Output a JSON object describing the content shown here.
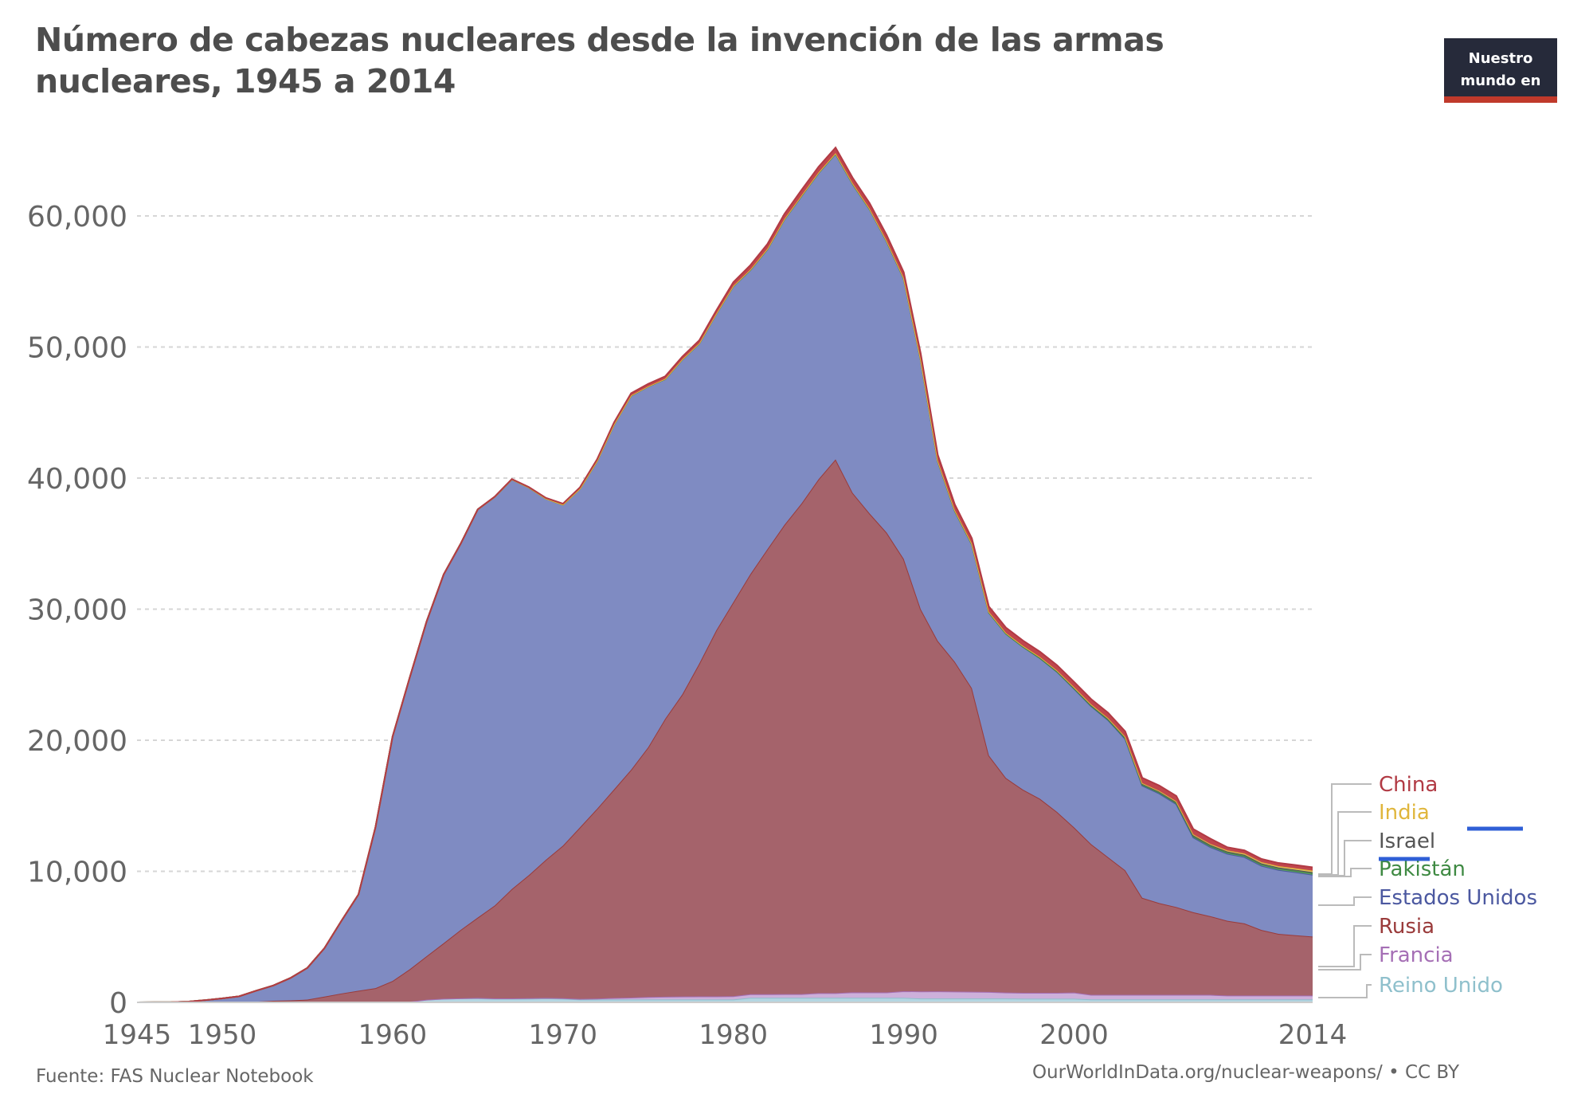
{
  "title": "Número de cabezas nucleares desde la invención de las armas nucleares, 1945 a 2014",
  "logo": {
    "line1": "Nuestro",
    "line2": "mundo en"
  },
  "source": "Fuente: FAS Nuclear Notebook",
  "license": "OurWorldInData.org/nuclear-weapons/ • CC BY",
  "chart_data": {
    "type": "area",
    "stacked": true,
    "grid": true,
    "legend_placement": "right",
    "ylim": [
      0,
      65000
    ],
    "xlim": [
      1945,
      2014
    ],
    "yticks": [
      0,
      10000,
      20000,
      30000,
      40000,
      50000,
      60000
    ],
    "ytick_labels": [
      "0",
      "10,000",
      "20,000",
      "30,000",
      "40,000",
      "50,000",
      "60,000"
    ],
    "xticks": [
      1945,
      1950,
      1960,
      1970,
      1980,
      1990,
      2000,
      2014
    ],
    "xtick_labels": [
      "1945",
      "1950",
      "1960",
      "1970",
      "1980",
      "1990",
      "2000",
      "2014"
    ],
    "x": [
      1945,
      1946,
      1947,
      1948,
      1949,
      1950,
      1951,
      1952,
      1953,
      1954,
      1955,
      1956,
      1957,
      1958,
      1959,
      1960,
      1961,
      1962,
      1963,
      1964,
      1965,
      1966,
      1967,
      1968,
      1969,
      1970,
      1971,
      1972,
      1973,
      1974,
      1975,
      1976,
      1977,
      1978,
      1979,
      1980,
      1981,
      1982,
      1983,
      1984,
      1985,
      1986,
      1987,
      1988,
      1989,
      1990,
      1991,
      1992,
      1993,
      1994,
      1995,
      1996,
      1997,
      1998,
      1999,
      2000,
      2001,
      2002,
      2003,
      2004,
      2005,
      2006,
      2007,
      2008,
      2009,
      2010,
      2011,
      2012,
      2013,
      2014
    ],
    "series": [
      {
        "name": "Reino Unido",
        "color": "#8fc0cc",
        "fill": "#b4d6e2",
        "values": [
          0,
          0,
          0,
          0,
          0,
          0,
          0,
          0,
          1,
          5,
          10,
          15,
          20,
          22,
          25,
          30,
          50,
          205,
          280,
          310,
          310,
          270,
          270,
          280,
          308,
          280,
          220,
          220,
          220,
          220,
          220,
          220,
          220,
          220,
          220,
          220,
          350,
          350,
          350,
          350,
          350,
          350,
          350,
          350,
          350,
          350,
          300,
          300,
          300,
          300,
          300,
          300,
          280,
          280,
          280,
          280,
          225,
          225,
          225,
          225,
          225,
          225,
          225,
          225,
          225,
          225,
          225,
          225,
          225,
          225
        ]
      },
      {
        "name": "Francia",
        "color": "#a56fb5",
        "fill": "#cdb0da",
        "values": [
          0,
          0,
          0,
          0,
          0,
          0,
          0,
          0,
          0,
          0,
          0,
          0,
          0,
          0,
          0,
          0,
          0,
          0,
          0,
          4,
          32,
          36,
          36,
          36,
          36,
          36,
          45,
          70,
          116,
          145,
          188,
          212,
          228,
          235,
          235,
          250,
          274,
          274,
          279,
          280,
          360,
          355,
          420,
          411,
          412,
          504,
          538,
          540,
          525,
          510,
          500,
          450,
          450,
          450,
          450,
          470,
          350,
          350,
          350,
          350,
          350,
          350,
          350,
          350,
          300,
          300,
          300,
          300,
          300,
          300
        ]
      },
      {
        "name": "Rusia",
        "color": "#9a3b3b",
        "fill": "#a5636b",
        "values": [
          0,
          0,
          0,
          0,
          1,
          5,
          25,
          50,
          120,
          150,
          200,
          426,
          660,
          869,
          1060,
          1605,
          2471,
          3322,
          4238,
          5221,
          6129,
          7089,
          8339,
          9399,
          10538,
          11643,
          13092,
          14478,
          15915,
          17385,
          19055,
          21205,
          23044,
          25393,
          27935,
          30062,
          32049,
          33952,
          35804,
          37431,
          39197,
          40723,
          38107,
          36538,
          35078,
          32980,
          29154,
          26734,
          25155,
          23157,
          18034,
          16367,
          15500,
          14800,
          13800,
          12600,
          11500,
          10500,
          9500,
          7400,
          7000,
          6700,
          6300,
          6000,
          5700,
          5500,
          5000,
          4700,
          4600,
          4500
        ]
      },
      {
        "name": "Estados Unidos",
        "color": "#4b58a0",
        "fill": "#7f8bc2",
        "values": [
          2,
          9,
          13,
          50,
          170,
          299,
          438,
          841,
          1169,
          1703,
          2422,
          3692,
          5543,
          7345,
          12298,
          18638,
          22229,
          25540,
          28133,
          29463,
          31139,
          31175,
          31255,
          29561,
          27552,
          26008,
          25830,
          26516,
          27835,
          28537,
          27519,
          25914,
          25542,
          24418,
          24138,
          24104,
          23208,
          22886,
          23305,
          23459,
          23368,
          23317,
          23575,
          23205,
          22217,
          21392,
          19008,
          13708,
          11511,
          10979,
          10904,
          11011,
          10903,
          10732,
          10685,
          10577,
          10526,
          10457,
          10027,
          8570,
          8360,
          7853,
          5709,
          5273,
          5113,
          5066,
          4897,
          4881,
          4804,
          4717
        ]
      },
      {
        "name": "Pakistán",
        "color": "#3f8a43",
        "fill": "#5fa063",
        "values": [
          0,
          0,
          0,
          0,
          0,
          0,
          0,
          0,
          0,
          0,
          0,
          0,
          0,
          0,
          0,
          0,
          0,
          0,
          0,
          0,
          0,
          0,
          0,
          0,
          0,
          0,
          0,
          0,
          0,
          0,
          0,
          0,
          0,
          0,
          0,
          0,
          0,
          0,
          0,
          0,
          0,
          0,
          0,
          0,
          0,
          0,
          0,
          0,
          0,
          0,
          0,
          0,
          0,
          5,
          15,
          28,
          35,
          45,
          55,
          65,
          75,
          80,
          85,
          90,
          95,
          100,
          105,
          110,
          115,
          120
        ]
      },
      {
        "name": "Israel",
        "color": "#555555",
        "fill": "#777777",
        "values": [
          0,
          0,
          0,
          0,
          0,
          0,
          0,
          0,
          0,
          0,
          0,
          0,
          0,
          0,
          0,
          0,
          0,
          0,
          0,
          0,
          0,
          0,
          2,
          4,
          6,
          8,
          11,
          13,
          15,
          20,
          20,
          22,
          24,
          26,
          28,
          31,
          33,
          35,
          38,
          41,
          44,
          47,
          50,
          51,
          52,
          53,
          55,
          57,
          60,
          62,
          64,
          66,
          68,
          70,
          71,
          72,
          74,
          76,
          78,
          80,
          80,
          80,
          80,
          80,
          80,
          80,
          80,
          80,
          80,
          80
        ]
      },
      {
        "name": "India",
        "color": "#e0b63c",
        "fill": "#e8c766",
        "values": [
          0,
          0,
          0,
          0,
          0,
          0,
          0,
          0,
          0,
          0,
          0,
          0,
          0,
          0,
          0,
          0,
          0,
          0,
          0,
          0,
          0,
          0,
          0,
          0,
          0,
          0,
          0,
          0,
          0,
          0,
          0,
          0,
          0,
          0,
          0,
          0,
          0,
          0,
          0,
          0,
          0,
          0,
          0,
          0,
          0,
          0,
          0,
          0,
          0,
          0,
          0,
          0,
          0,
          15,
          20,
          24,
          30,
          35,
          40,
          45,
          50,
          60,
          70,
          75,
          80,
          90,
          95,
          100,
          105,
          110
        ]
      },
      {
        "name": "China",
        "color": "#b13a44",
        "fill": "#c0464d",
        "values": [
          0,
          0,
          0,
          0,
          0,
          0,
          0,
          0,
          0,
          0,
          0,
          0,
          0,
          0,
          0,
          0,
          0,
          0,
          0,
          1,
          5,
          20,
          25,
          35,
          50,
          75,
          100,
          130,
          150,
          170,
          185,
          190,
          200,
          220,
          235,
          280,
          330,
          360,
          380,
          415,
          425,
          425,
          415,
          415,
          430,
          430,
          435,
          435,
          435,
          400,
          400,
          400,
          400,
          400,
          400,
          400,
          400,
          400,
          400,
          400,
          400,
          400,
          400,
          400,
          240,
          240,
          240,
          240,
          250,
          250
        ]
      }
    ]
  }
}
